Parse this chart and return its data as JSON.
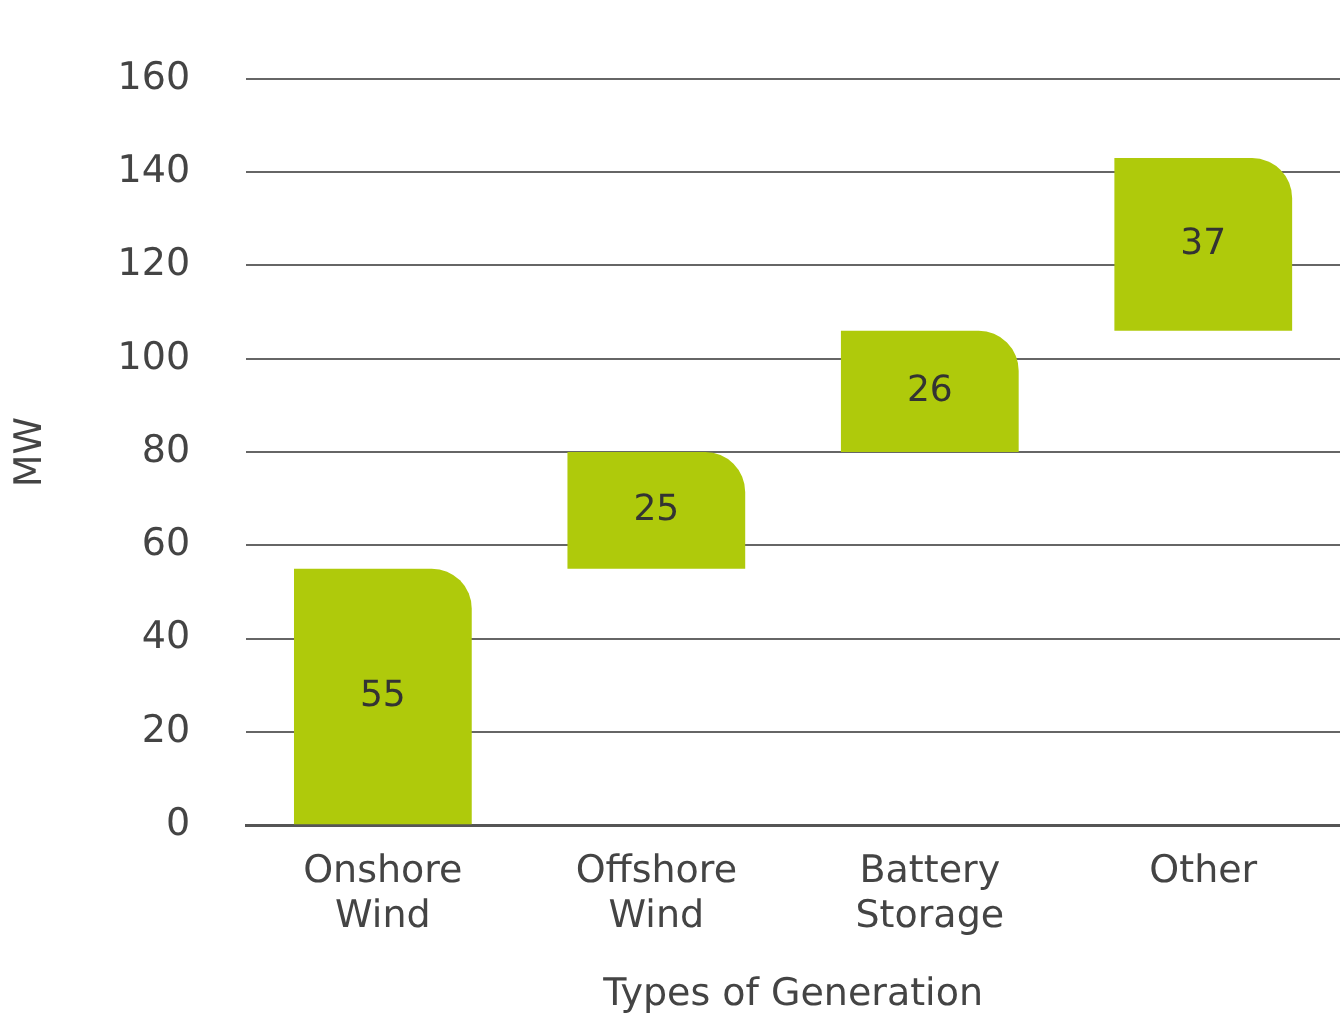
{
  "chart_data": {
    "type": "bar",
    "xlabel": "Types of Generation",
    "ylabel": "MW",
    "categories": [
      "Onshore Wind",
      "Offshore Wind",
      "Battery Storage",
      "Other"
    ],
    "values": [
      55,
      25,
      26,
      37
    ],
    "base": [
      0,
      55,
      80,
      106
    ],
    "color": "#afca0b",
    "ylim": [
      0,
      160
    ],
    "yticks": [
      0,
      20,
      40,
      60,
      80,
      100,
      120,
      140,
      160
    ],
    "grid": "y",
    "data_labels": true,
    "legend": false
  }
}
